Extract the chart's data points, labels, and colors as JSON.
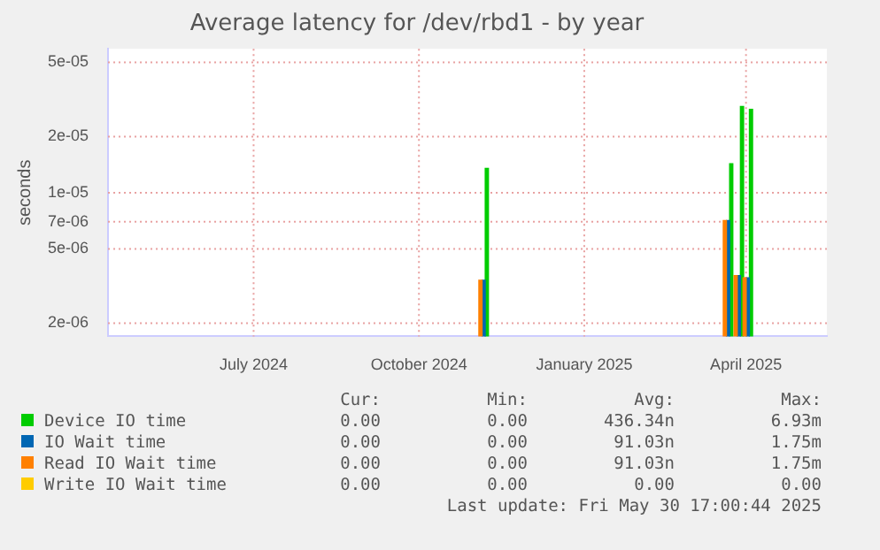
{
  "chart_data": {
    "type": "bar",
    "title": "Average latency for /dev/rbd1 - by year",
    "ylabel": "seconds",
    "x": [
      "2024-11-06",
      "2025-03-22",
      "2025-03-28",
      "2025-04-02"
    ],
    "xlim": [
      "2024-04-11",
      "2025-05-16"
    ],
    "xticks": [
      {
        "value": "2024-07-01",
        "label": "July 2024"
      },
      {
        "value": "2024-10-01",
        "label": "October 2024"
      },
      {
        "value": "2025-01-01",
        "label": "January 2025"
      },
      {
        "value": "2025-04-01",
        "label": "April 2025"
      }
    ],
    "log": "y",
    "ylim": [
      1.7e-06,
      5.9e-05
    ],
    "yticks": [
      {
        "value": 2e-06,
        "label": "2e-06"
      },
      {
        "value": 5e-06,
        "label": "5e-06"
      },
      {
        "value": 7e-06,
        "label": "7e-06"
      },
      {
        "value": 1e-05,
        "label": "1e-05"
      },
      {
        "value": 2e-05,
        "label": "2e-05"
      },
      {
        "value": 5e-05,
        "label": "5e-05"
      }
    ],
    "grid": true,
    "legend": "bottom",
    "series": [
      {
        "name": "Device IO time",
        "color": "#00cc00",
        "values": [
          1.35e-05,
          1.43e-05,
          2.9e-05,
          2.8e-05
        ]
      },
      {
        "name": "IO Wait time",
        "color": "#0066b3",
        "values": [
          3.4e-06,
          7.1e-06,
          3.6e-06,
          3.5e-06
        ]
      },
      {
        "name": "Read IO Wait time",
        "color": "#ff8000",
        "values": [
          3.4e-06,
          7.1e-06,
          3.6e-06,
          3.5e-06
        ]
      },
      {
        "name": "Write IO Wait time",
        "color": "#ffcc00",
        "values": [
          null,
          null,
          null,
          null
        ]
      }
    ],
    "annotations": [
      "Cur:",
      "Min:",
      "Avg:",
      "Max:",
      "0.00",
      "0.00",
      "436.34n",
      "6.93m",
      "0.00",
      "0.00",
      "91.03n",
      "1.75m",
      "0.00",
      "0.00",
      "91.03n",
      "1.75m",
      "0.00",
      "0.00",
      "0.00",
      "0.00",
      "Last update: Fri May 30 17:00:44 2025"
    ]
  }
}
